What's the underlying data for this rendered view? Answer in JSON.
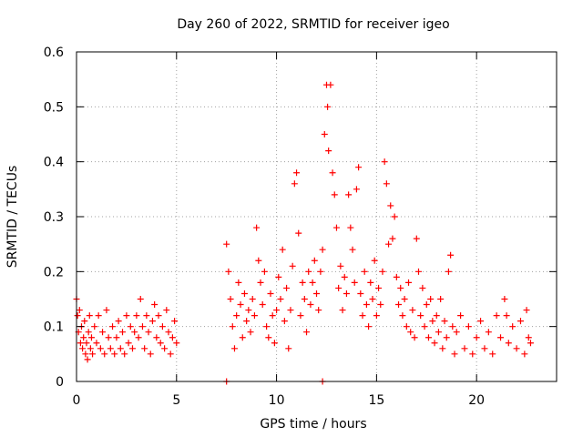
{
  "chart_data": {
    "type": "scatter",
    "title": "Day 260 of 2022, SRMTID for receiver igeo",
    "xlabel": "GPS time / hours",
    "ylabel": "SRMTID / TECUs",
    "xlim": [
      0,
      24
    ],
    "ylim": [
      0,
      0.6
    ],
    "xticks": [
      0,
      5,
      10,
      15,
      20
    ],
    "xtick_labels": [
      "0",
      "5",
      "10",
      "15",
      "20"
    ],
    "yticks": [
      0,
      0.1,
      0.2,
      0.3,
      0.4,
      0.5,
      0.6
    ],
    "ytick_labels": [
      "0",
      "0.1",
      "0.2",
      "0.3",
      "0.4",
      "0.5",
      "0.6"
    ],
    "grid": true,
    "marker": "+",
    "color": "#ff0000",
    "series": [
      {
        "name": "SRMTID",
        "points": [
          [
            0.0,
            0.15
          ],
          [
            0.05,
            0.12
          ],
          [
            0.1,
            0.09
          ],
          [
            0.15,
            0.13
          ],
          [
            0.2,
            0.07
          ],
          [
            0.25,
            0.1
          ],
          [
            0.3,
            0.06
          ],
          [
            0.35,
            0.08
          ],
          [
            0.4,
            0.11
          ],
          [
            0.45,
            0.05
          ],
          [
            0.5,
            0.07
          ],
          [
            0.55,
            0.04
          ],
          [
            0.6,
            0.09
          ],
          [
            0.65,
            0.12
          ],
          [
            0.7,
            0.06
          ],
          [
            0.75,
            0.08
          ],
          [
            0.8,
            0.05
          ],
          [
            0.9,
            0.1
          ],
          [
            1.0,
            0.07
          ],
          [
            1.1,
            0.12
          ],
          [
            1.2,
            0.06
          ],
          [
            1.3,
            0.09
          ],
          [
            1.4,
            0.05
          ],
          [
            1.5,
            0.13
          ],
          [
            1.6,
            0.08
          ],
          [
            1.7,
            0.06
          ],
          [
            1.8,
            0.1
          ],
          [
            1.9,
            0.05
          ],
          [
            2.0,
            0.08
          ],
          [
            2.1,
            0.11
          ],
          [
            2.2,
            0.06
          ],
          [
            2.3,
            0.09
          ],
          [
            2.4,
            0.05
          ],
          [
            2.5,
            0.12
          ],
          [
            2.6,
            0.07
          ],
          [
            2.7,
            0.1
          ],
          [
            2.8,
            0.06
          ],
          [
            2.9,
            0.09
          ],
          [
            3.0,
            0.12
          ],
          [
            3.1,
            0.08
          ],
          [
            3.2,
            0.15
          ],
          [
            3.3,
            0.1
          ],
          [
            3.4,
            0.06
          ],
          [
            3.5,
            0.12
          ],
          [
            3.6,
            0.09
          ],
          [
            3.7,
            0.05
          ],
          [
            3.8,
            0.11
          ],
          [
            3.9,
            0.14
          ],
          [
            4.0,
            0.08
          ],
          [
            4.1,
            0.12
          ],
          [
            4.2,
            0.07
          ],
          [
            4.3,
            0.1
          ],
          [
            4.4,
            0.06
          ],
          [
            4.5,
            0.13
          ],
          [
            4.6,
            0.09
          ],
          [
            4.7,
            0.05
          ],
          [
            4.8,
            0.08
          ],
          [
            4.9,
            0.11
          ],
          [
            5.0,
            0.07
          ],
          [
            7.5,
            0.0
          ],
          [
            7.5,
            0.25
          ],
          [
            7.6,
            0.2
          ],
          [
            7.7,
            0.15
          ],
          [
            7.8,
            0.1
          ],
          [
            7.9,
            0.06
          ],
          [
            8.0,
            0.12
          ],
          [
            8.1,
            0.18
          ],
          [
            8.2,
            0.14
          ],
          [
            8.3,
            0.08
          ],
          [
            8.4,
            0.16
          ],
          [
            8.5,
            0.11
          ],
          [
            8.6,
            0.13
          ],
          [
            8.7,
            0.09
          ],
          [
            8.8,
            0.15
          ],
          [
            8.9,
            0.12
          ],
          [
            9.0,
            0.28
          ],
          [
            9.1,
            0.22
          ],
          [
            9.2,
            0.18
          ],
          [
            9.3,
            0.14
          ],
          [
            9.4,
            0.2
          ],
          [
            9.5,
            0.1
          ],
          [
            9.6,
            0.08
          ],
          [
            9.7,
            0.16
          ],
          [
            9.8,
            0.12
          ],
          [
            9.9,
            0.07
          ],
          [
            10.0,
            0.13
          ],
          [
            10.1,
            0.19
          ],
          [
            10.2,
            0.15
          ],
          [
            10.3,
            0.24
          ],
          [
            10.4,
            0.11
          ],
          [
            10.5,
            0.17
          ],
          [
            10.6,
            0.06
          ],
          [
            10.7,
            0.13
          ],
          [
            10.8,
            0.21
          ],
          [
            10.9,
            0.36
          ],
          [
            11.0,
            0.38
          ],
          [
            11.1,
            0.27
          ],
          [
            11.2,
            0.12
          ],
          [
            11.3,
            0.18
          ],
          [
            11.4,
            0.15
          ],
          [
            11.5,
            0.09
          ],
          [
            11.6,
            0.2
          ],
          [
            11.7,
            0.14
          ],
          [
            11.8,
            0.18
          ],
          [
            11.9,
            0.22
          ],
          [
            12.0,
            0.16
          ],
          [
            12.1,
            0.13
          ],
          [
            12.2,
            0.2
          ],
          [
            12.3,
            0.0
          ],
          [
            12.3,
            0.24
          ],
          [
            12.4,
            0.45
          ],
          [
            12.5,
            0.54
          ],
          [
            12.55,
            0.5
          ],
          [
            12.6,
            0.42
          ],
          [
            12.7,
            0.54
          ],
          [
            12.8,
            0.38
          ],
          [
            12.9,
            0.34
          ],
          [
            13.0,
            0.28
          ],
          [
            13.1,
            0.17
          ],
          [
            13.2,
            0.21
          ],
          [
            13.3,
            0.13
          ],
          [
            13.4,
            0.19
          ],
          [
            13.5,
            0.16
          ],
          [
            13.6,
            0.34
          ],
          [
            13.7,
            0.28
          ],
          [
            13.8,
            0.24
          ],
          [
            13.9,
            0.18
          ],
          [
            14.0,
            0.35
          ],
          [
            14.1,
            0.39
          ],
          [
            14.2,
            0.16
          ],
          [
            14.3,
            0.12
          ],
          [
            14.4,
            0.2
          ],
          [
            14.5,
            0.14
          ],
          [
            14.6,
            0.1
          ],
          [
            14.7,
            0.18
          ],
          [
            14.8,
            0.15
          ],
          [
            14.9,
            0.22
          ],
          [
            15.0,
            0.12
          ],
          [
            15.1,
            0.17
          ],
          [
            15.2,
            0.14
          ],
          [
            15.3,
            0.2
          ],
          [
            15.4,
            0.4
          ],
          [
            15.5,
            0.36
          ],
          [
            15.6,
            0.25
          ],
          [
            15.7,
            0.32
          ],
          [
            15.8,
            0.26
          ],
          [
            15.9,
            0.3
          ],
          [
            16.0,
            0.19
          ],
          [
            16.1,
            0.14
          ],
          [
            16.2,
            0.17
          ],
          [
            16.3,
            0.12
          ],
          [
            16.4,
            0.15
          ],
          [
            16.5,
            0.1
          ],
          [
            16.6,
            0.18
          ],
          [
            16.7,
            0.09
          ],
          [
            16.8,
            0.13
          ],
          [
            16.9,
            0.08
          ],
          [
            17.0,
            0.26
          ],
          [
            17.1,
            0.2
          ],
          [
            17.2,
            0.12
          ],
          [
            17.3,
            0.17
          ],
          [
            17.4,
            0.1
          ],
          [
            17.5,
            0.14
          ],
          [
            17.6,
            0.08
          ],
          [
            17.7,
            0.15
          ],
          [
            17.8,
            0.11
          ],
          [
            17.9,
            0.07
          ],
          [
            18.0,
            0.12
          ],
          [
            18.1,
            0.09
          ],
          [
            18.2,
            0.15
          ],
          [
            18.3,
            0.06
          ],
          [
            18.4,
            0.11
          ],
          [
            18.5,
            0.08
          ],
          [
            18.6,
            0.2
          ],
          [
            18.7,
            0.23
          ],
          [
            18.8,
            0.1
          ],
          [
            18.9,
            0.05
          ],
          [
            19.0,
            0.09
          ],
          [
            19.2,
            0.12
          ],
          [
            19.4,
            0.06
          ],
          [
            19.6,
            0.1
          ],
          [
            19.8,
            0.05
          ],
          [
            20.0,
            0.08
          ],
          [
            20.2,
            0.11
          ],
          [
            20.4,
            0.06
          ],
          [
            20.6,
            0.09
          ],
          [
            20.8,
            0.05
          ],
          [
            21.0,
            0.12
          ],
          [
            21.2,
            0.08
          ],
          [
            21.4,
            0.15
          ],
          [
            21.5,
            0.12
          ],
          [
            21.6,
            0.07
          ],
          [
            21.8,
            0.1
          ],
          [
            22.0,
            0.06
          ],
          [
            22.2,
            0.11
          ],
          [
            22.4,
            0.05
          ],
          [
            22.5,
            0.13
          ],
          [
            22.6,
            0.08
          ],
          [
            22.7,
            0.07
          ]
        ]
      }
    ]
  }
}
